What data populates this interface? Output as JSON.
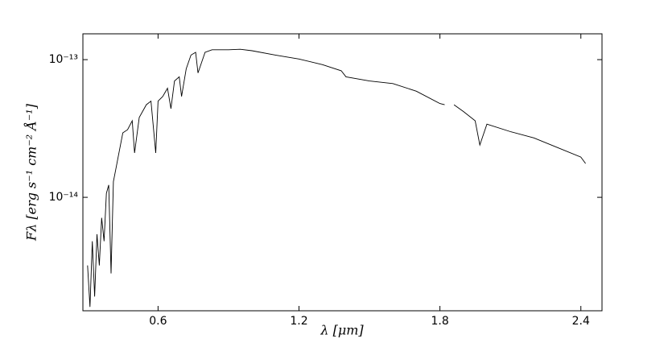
{
  "chart_data": {
    "type": "line",
    "xlabel": "λ [μm]",
    "ylabel": "Fλ [erg s⁻¹ cm⁻² Å⁻¹]",
    "log_y": true,
    "xlim": [
      0.28,
      2.49
    ],
    "ylim": [
      1.5e-15,
      1.54e-13
    ],
    "xticks": [
      0.6,
      1.2,
      1.8,
      2.4
    ],
    "yticks": [
      {
        "value": 1e-13,
        "label": "10⁻¹³"
      },
      {
        "value": 1e-14,
        "label": "10⁻¹⁴"
      }
    ],
    "x": [
      0.3,
      0.31,
      0.32,
      0.33,
      0.34,
      0.35,
      0.36,
      0.37,
      0.38,
      0.39,
      0.4,
      0.41,
      0.42,
      0.43,
      0.44,
      0.45,
      0.47,
      0.49,
      0.5,
      0.52,
      0.55,
      0.57,
      0.59,
      0.6,
      0.62,
      0.64,
      0.655,
      0.67,
      0.69,
      0.7,
      0.72,
      0.74,
      0.76,
      0.77,
      0.8,
      0.83,
      0.9,
      0.95,
      1.0,
      1.1,
      1.2,
      1.3,
      1.38,
      1.4,
      1.5,
      1.6,
      1.7,
      1.8,
      1.82,
      1.84,
      1.86,
      1.9,
      1.95,
      1.97,
      2.0,
      2.1,
      2.2,
      2.3,
      2.4,
      2.42
    ],
    "series": [
      {
        "color": "#000000",
        "values": [
          3.2e-15,
          1.6e-15,
          4.8e-15,
          1.9e-15,
          5.4e-15,
          3.2e-15,
          7.1e-15,
          4.8e-15,
          1.07e-14,
          1.23e-14,
          2.8e-15,
          1.3e-14,
          1.6e-14,
          1.96e-14,
          2.4e-14,
          2.94e-14,
          3.1e-14,
          3.6e-14,
          2.1e-14,
          3.8e-14,
          4.7e-14,
          5e-14,
          2.1e-14,
          5e-14,
          5.4e-14,
          6.2e-14,
          4.4e-14,
          7e-14,
          7.5e-14,
          5.4e-14,
          8.6e-14,
          1.08e-13,
          1.13e-13,
          8e-14,
          1.13e-13,
          1.18e-13,
          1.18e-13,
          1.19e-13,
          1.16e-13,
          1.08e-13,
          1.01e-13,
          9.2e-14,
          8.3e-14,
          7.5e-14,
          7e-14,
          6.7e-14,
          5.9e-14,
          4.8e-14,
          4.7e-14,
          null,
          4.7e-14,
          4.2e-14,
          3.6e-14,
          2.4e-14,
          3.4e-14,
          3e-14,
          2.7e-14,
          2.3e-14,
          1.96e-14,
          1.76e-14
        ]
      }
    ]
  }
}
